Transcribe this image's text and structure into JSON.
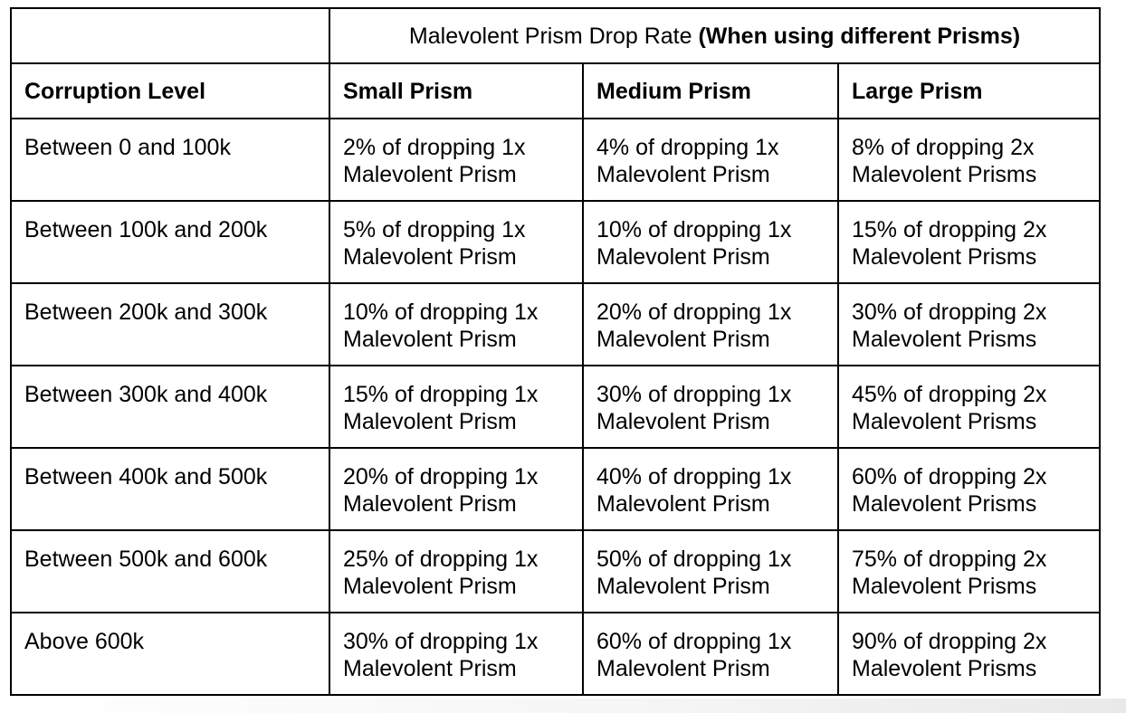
{
  "colors": {
    "border": "#000000",
    "text": "#000000",
    "background": "#ffffff"
  },
  "super_header": {
    "normal": "Malevolent Prism Drop Rate ",
    "bold": "(When using different Prisms)"
  },
  "columns": [
    "Corruption Level",
    "Small Prism",
    "Medium Prism",
    "Large Prism"
  ],
  "rows": [
    {
      "level": "Between 0 and 100k",
      "small": [
        "2% of dropping 1x",
        "Malevolent Prism"
      ],
      "medium": [
        "4% of dropping 1x",
        "Malevolent Prism"
      ],
      "large": [
        "8% of dropping 2x",
        "Malevolent Prisms"
      ]
    },
    {
      "level": "Between 100k and 200k",
      "small": [
        "5% of dropping 1x",
        "Malevolent Prism"
      ],
      "medium": [
        "10% of dropping 1x",
        "Malevolent Prism"
      ],
      "large": [
        "15% of dropping 2x",
        "Malevolent Prisms"
      ]
    },
    {
      "level": "Between 200k and 300k",
      "small": [
        "10% of dropping 1x",
        "Malevolent Prism"
      ],
      "medium": [
        "20% of dropping 1x",
        "Malevolent Prism"
      ],
      "large": [
        "30% of dropping 2x",
        "Malevolent Prisms"
      ]
    },
    {
      "level": "Between 300k and 400k",
      "small": [
        "15% of dropping 1x",
        "Malevolent Prism"
      ],
      "medium": [
        "30% of dropping 1x",
        "Malevolent Prism"
      ],
      "large": [
        "45% of dropping 2x",
        "Malevolent Prisms"
      ]
    },
    {
      "level": "Between 400k and 500k",
      "small": [
        "20% of dropping 1x",
        "Malevolent Prism"
      ],
      "medium": [
        "40% of dropping 1x",
        "Malevolent Prism"
      ],
      "large": [
        "60% of dropping 2x",
        "Malevolent Prisms"
      ]
    },
    {
      "level": "Between 500k and 600k",
      "small": [
        "25% of dropping 1x",
        "Malevolent Prism"
      ],
      "medium": [
        "50% of dropping 1x",
        "Malevolent Prism"
      ],
      "large": [
        "75% of dropping 2x",
        "Malevolent Prisms"
      ]
    },
    {
      "level": "Above 600k",
      "small": [
        "30% of dropping 1x",
        "Malevolent Prism"
      ],
      "medium": [
        "60% of dropping 1x",
        "Malevolent Prism"
      ],
      "large": [
        "90% of dropping 2x",
        "Malevolent Prisms"
      ]
    }
  ]
}
